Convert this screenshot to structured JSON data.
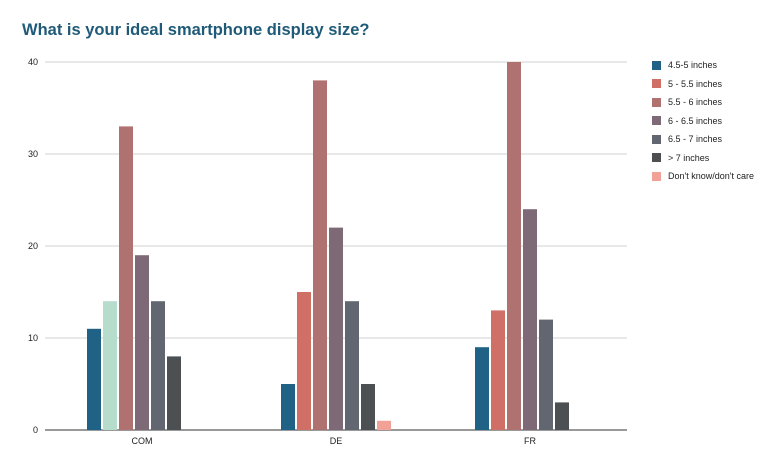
{
  "chart_data": {
    "type": "bar",
    "title": "What is your ideal smartphone display size?",
    "xlabel": "",
    "ylabel": "",
    "ylim": [
      0,
      40
    ],
    "yticks": [
      0,
      10,
      20,
      30,
      40
    ],
    "grid": true,
    "legend_position": "right",
    "categories": [
      "COM",
      "DE",
      "FR"
    ],
    "series": [
      {
        "name": "4.5-5 inches",
        "color": "#1f6285",
        "values": [
          11,
          5,
          9
        ]
      },
      {
        "name": "5 - 5.5 inches",
        "color": "#cf6f66",
        "values": [
          14,
          15,
          13
        ]
      },
      {
        "name": "5.5 - 6 inches",
        "color": "#b07270",
        "values": [
          33,
          38,
          40
        ]
      },
      {
        "name": "6 - 6.5 inches",
        "color": "#7e6a76",
        "values": [
          19,
          22,
          24
        ]
      },
      {
        "name": "6.5 - 7 inches",
        "color": "#626670",
        "values": [
          14,
          14,
          12
        ]
      },
      {
        "name": "> 7 inches",
        "color": "#4d5052",
        "values": [
          8,
          5,
          3
        ]
      },
      {
        "name": "Don't know/don't care",
        "color": "#f2a197",
        "values": [
          0,
          1,
          0
        ]
      }
    ],
    "bar_color_overrides": [
      {
        "series": 1,
        "category": 0,
        "color": "#b6dccc"
      }
    ]
  }
}
